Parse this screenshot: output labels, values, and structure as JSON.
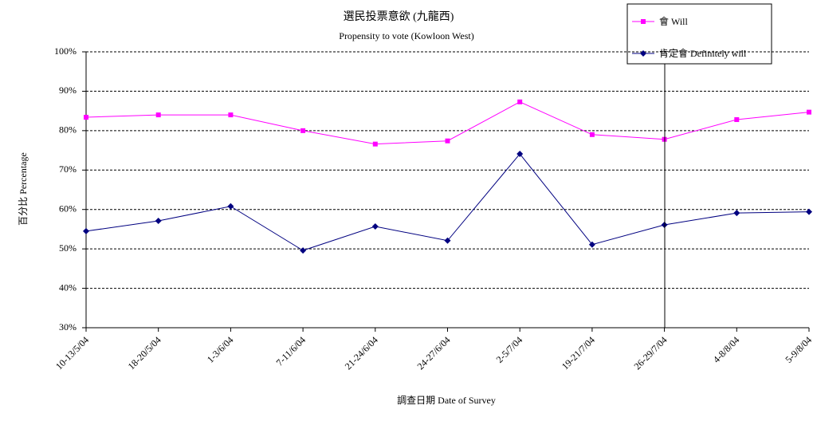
{
  "chart_data": {
    "type": "line",
    "title": "選民投票意欲 (九龍西)",
    "subtitle": "Propensity to vote (Kowloon West)",
    "x_label": "調查日期 Date of Survey",
    "y_label": "百分比 Percentage",
    "categories": [
      "10-13/5/04",
      "18-20/5/04",
      "1-3/6/04",
      "7-11/6/04",
      "21-24/6/04",
      "24-27/6/04",
      "2-5/7/04",
      "19-21/7/04",
      "26-29/7/04",
      "4-8/8/04",
      "5-9/8/04"
    ],
    "series": [
      {
        "name": "會 Will",
        "color": "#ff00ff",
        "marker": "square",
        "values": [
          83.4,
          84.0,
          84.0,
          80.0,
          76.6,
          77.4,
          87.3,
          79.0,
          77.8,
          82.8,
          84.7
        ]
      },
      {
        "name": "肯定會 Definitely will",
        "color": "#000080",
        "marker": "diamond",
        "values": [
          54.5,
          57.1,
          60.8,
          49.6,
          55.7,
          52.1,
          74.1,
          51.1,
          56.1,
          59.1,
          59.4
        ]
      }
    ],
    "ylim": [
      30,
      100
    ],
    "yticks": [
      {
        "value": 30,
        "label": "30%"
      },
      {
        "value": 40,
        "label": "40%"
      },
      {
        "value": 50,
        "label": "50%"
      },
      {
        "value": 60,
        "label": "60%"
      },
      {
        "value": 70,
        "label": "70%"
      },
      {
        "value": 80,
        "label": "80%"
      },
      {
        "value": 90,
        "label": "90%"
      },
      {
        "value": 100,
        "label": "100%"
      }
    ],
    "grid": true,
    "legend": "top-right"
  }
}
